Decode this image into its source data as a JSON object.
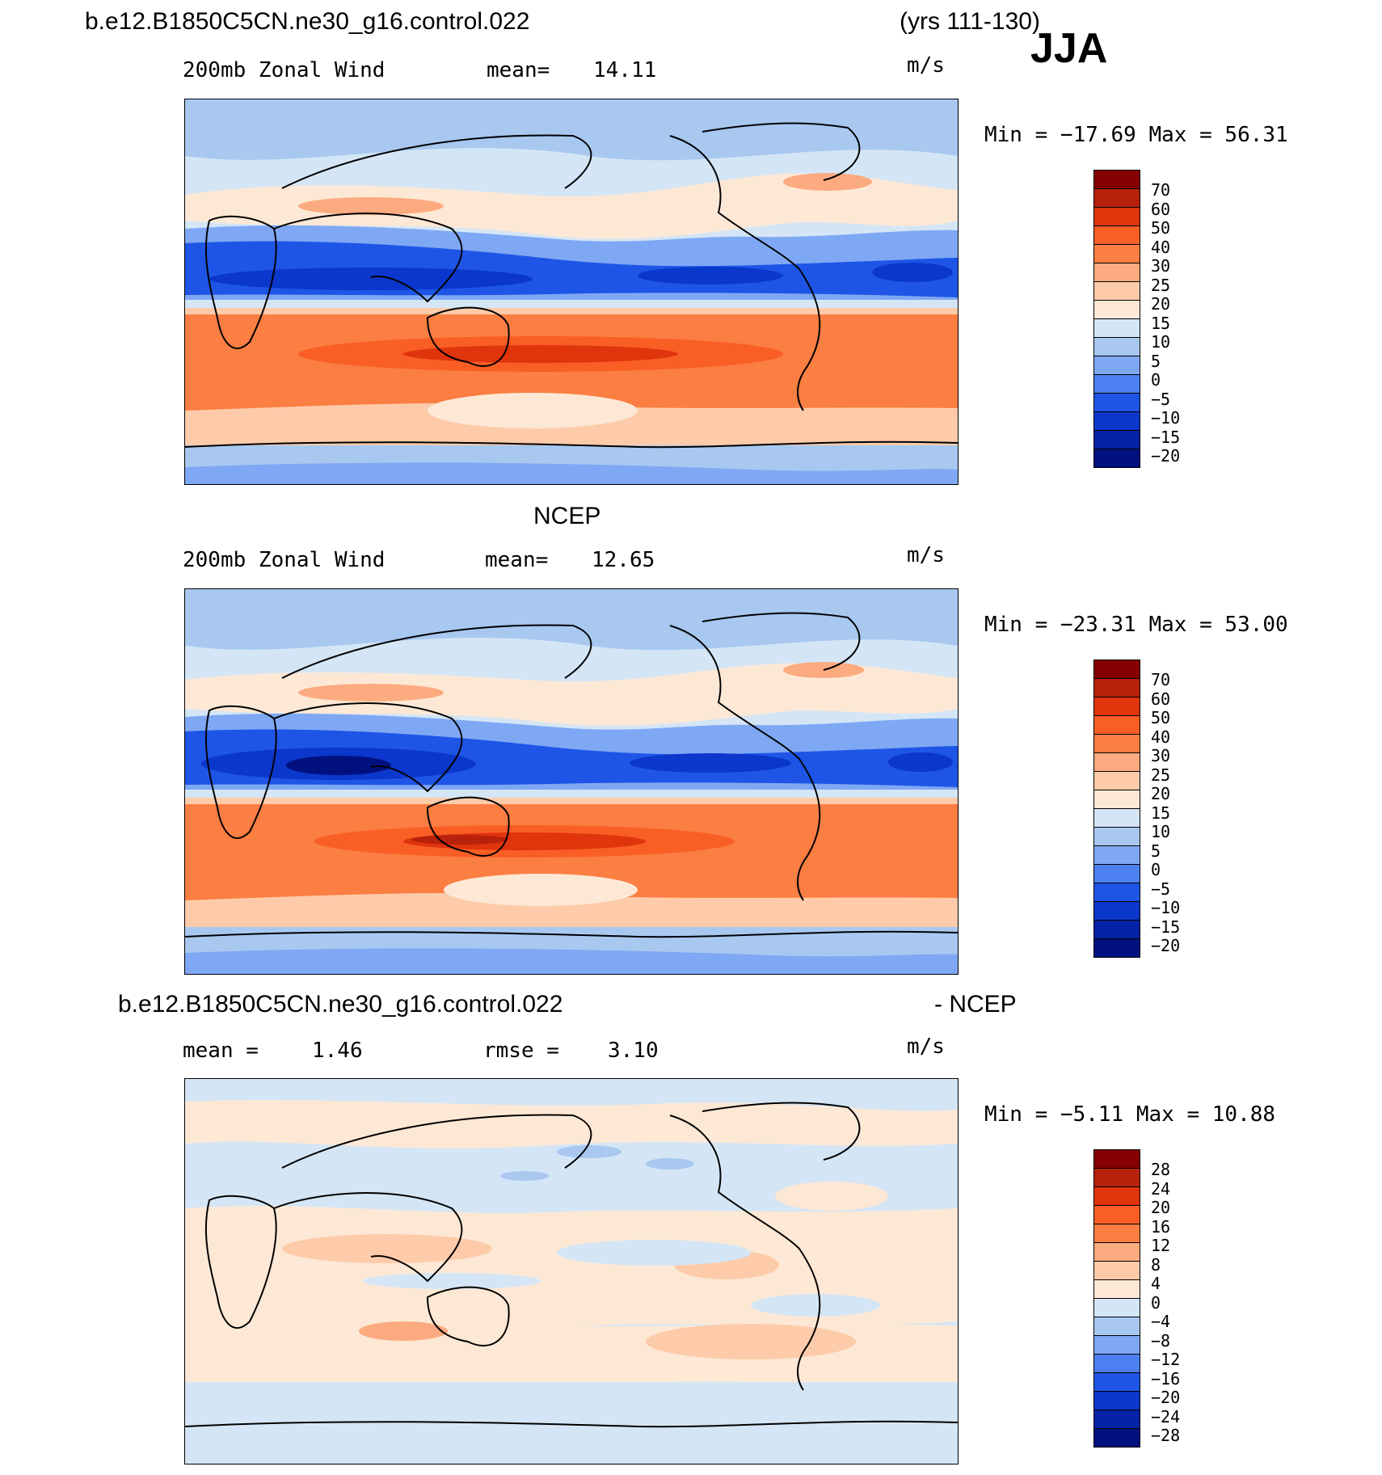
{
  "header": {
    "case_name": "b.e12.B1850C5CN.ne30_g16.control.022",
    "years": "(yrs 111-130)",
    "season": "JJA"
  },
  "panels": [
    {
      "id": "model",
      "field_label": "200mb Zonal Wind",
      "stat_label": "mean=",
      "stat_value": "14.11",
      "units": "m/s",
      "minmax": "Min = −17.69 Max =  56.31",
      "colorbar_labels": [
        "70",
        "60",
        "50",
        "40",
        "30",
        "25",
        "20",
        "15",
        "10",
        "5",
        "0",
        "−5",
        "−10",
        "−15",
        "−20"
      ]
    },
    {
      "id": "obs",
      "title": "NCEP",
      "field_label": "200mb Zonal Wind",
      "stat_label": "mean=",
      "stat_value": "12.65",
      "units": "m/s",
      "minmax": "Min = −23.31 Max =  53.00",
      "colorbar_labels": [
        "70",
        "60",
        "50",
        "40",
        "30",
        "25",
        "20",
        "15",
        "10",
        "5",
        "0",
        "−5",
        "−10",
        "−15",
        "−20"
      ]
    },
    {
      "id": "diff",
      "title_left": "b.e12.B1850C5CN.ne30_g16.control.022",
      "title_right": "- NCEP",
      "stat_label": "mean =",
      "stat_value": "1.46",
      "stat2_label": "rmse =",
      "stat2_value": "3.10",
      "units": "m/s",
      "minmax": "Min =  −5.11 Max =  10.88",
      "colorbar_labels": [
        "28",
        "24",
        "20",
        "16",
        "12",
        "8",
        "4",
        "0",
        "−4",
        "−8",
        "−12",
        "−16",
        "−20",
        "−24",
        "−28"
      ]
    }
  ],
  "colors": {
    "palette": [
      "#850000",
      "#b8210b",
      "#e0340d",
      "#f95e25",
      "#fb7e42",
      "#fcab80",
      "#fdcbaa",
      "#fde8d5",
      "#d4e6f6",
      "#a8c8f0",
      "#7fa8f4",
      "#4d7ff0",
      "#1e55e6",
      "#0b37cc",
      "#0523a6",
      "#00117f"
    ]
  }
}
